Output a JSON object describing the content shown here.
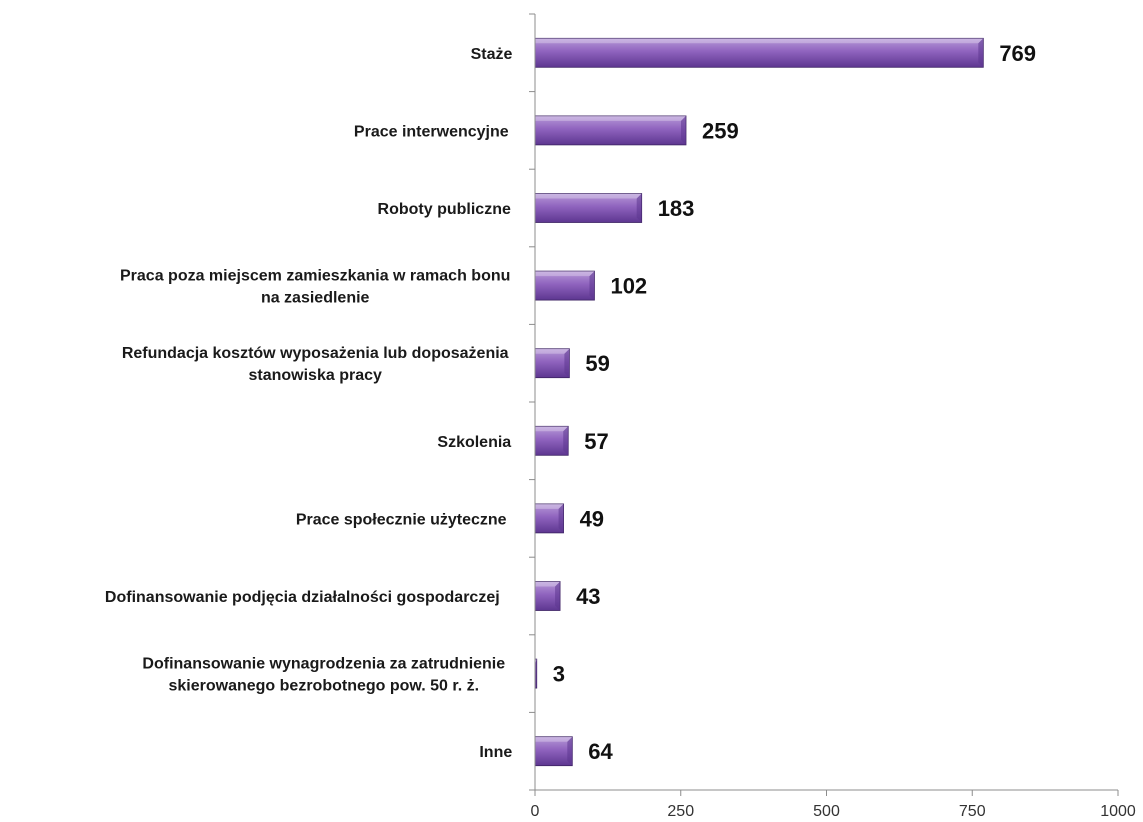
{
  "chart_data": {
    "type": "bar",
    "orientation": "horizontal",
    "categories": [
      [
        "Staże"
      ],
      [
        "Prace interwencyjne"
      ],
      [
        "Roboty publiczne"
      ],
      [
        "Praca poza miejscem zamieszkania w ramach bonu",
        "na zasiedlenie"
      ],
      [
        "Refundacja kosztów wyposażenia lub doposażenia",
        "stanowiska pracy"
      ],
      [
        "Szkolenia"
      ],
      [
        "Prace społecznie użyteczne"
      ],
      [
        "Dofinansowanie podjęcia działalności gospodarczej"
      ],
      [
        "Dofinansowanie wynagrodzenia za zatrudnienie",
        "skierowanego bezrobotnego pow. 50 r. ż."
      ],
      [
        "Inne"
      ]
    ],
    "values": [
      769,
      259,
      183,
      102,
      59,
      57,
      49,
      43,
      3,
      64
    ],
    "data_labels": [
      "769",
      "259",
      "183",
      "102",
      "59",
      "57",
      "49",
      "43",
      "3",
      "64"
    ],
    "xlim": [
      0,
      1000
    ],
    "xticks": [
      0,
      250,
      500,
      750,
      1000
    ],
    "xtick_labels": [
      "0",
      "250",
      "500",
      "750",
      "1000"
    ],
    "grid": false,
    "legend": "none",
    "colors": {
      "bar_light": "#b79ad8",
      "bar_mid": "#8f63be",
      "bar_dark": "#5d3690",
      "bar_edge": "#3d2363",
      "axis": "#8c8c8c"
    }
  }
}
